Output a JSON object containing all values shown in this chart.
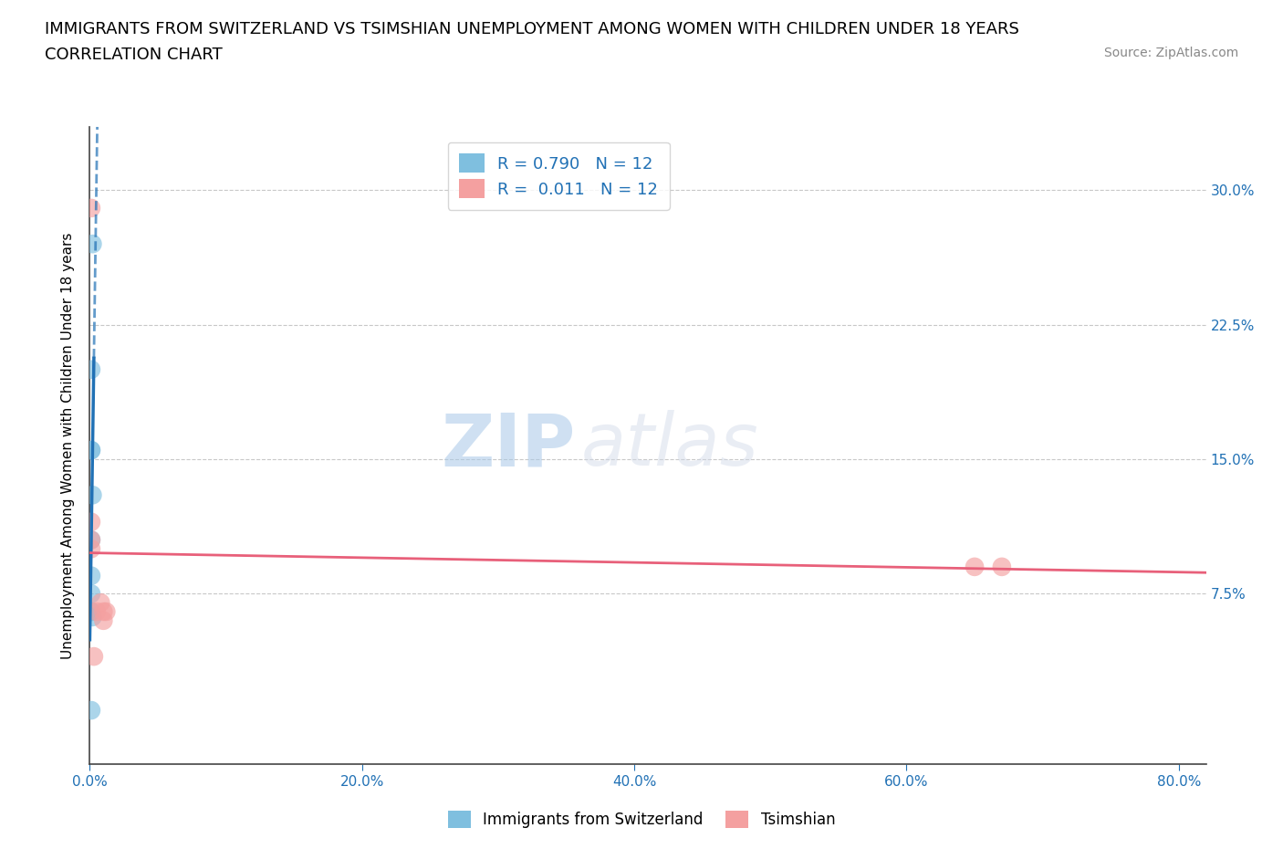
{
  "title_line1": "IMMIGRANTS FROM SWITZERLAND VS TSIMSHIAN UNEMPLOYMENT AMONG WOMEN WITH CHILDREN UNDER 18 YEARS",
  "title_line2": "CORRELATION CHART",
  "source": "Source: ZipAtlas.com",
  "ylabel": "Unemployment Among Women with Children Under 18 years",
  "xtick_vals": [
    0.0,
    0.2,
    0.4,
    0.6,
    0.8
  ],
  "xtick_labels": [
    "0.0%",
    "20.0%",
    "40.0%",
    "60.0%",
    "80.0%"
  ],
  "ytick_vals": [
    0.075,
    0.15,
    0.225,
    0.3
  ],
  "ytick_labels": [
    "7.5%",
    "15.0%",
    "22.5%",
    "30.0%"
  ],
  "xlim": [
    0.0,
    0.82
  ],
  "ylim": [
    -0.02,
    0.335
  ],
  "blue_x": [
    0.002,
    0.001,
    0.001,
    0.001,
    0.002,
    0.001,
    0.001,
    0.001,
    0.001,
    0.001,
    0.002,
    0.001
  ],
  "blue_y": [
    0.27,
    0.2,
    0.155,
    0.155,
    0.13,
    0.105,
    0.085,
    0.075,
    0.065,
    0.065,
    0.062,
    0.01
  ],
  "pink_x": [
    0.001,
    0.005,
    0.008,
    0.01,
    0.012,
    0.01,
    0.001,
    0.001,
    0.001,
    0.65,
    0.67,
    0.003
  ],
  "pink_y": [
    0.29,
    0.065,
    0.07,
    0.065,
    0.065,
    0.06,
    0.105,
    0.115,
    0.1,
    0.09,
    0.09,
    0.04
  ],
  "blue_color": "#7fbfdf",
  "pink_color": "#f4a0a0",
  "blue_line_color": "#2171b5",
  "pink_line_color": "#e8607a",
  "R_blue": "0.790",
  "N_blue": "12",
  "R_pink": "0.011",
  "N_pink": "12",
  "legend_label_blue": "Immigrants from Switzerland",
  "legend_label_pink": "Tsimshian",
  "watermark_zip": "ZIP",
  "watermark_atlas": "atlas",
  "background_color": "#ffffff",
  "grid_color": "#c8c8c8",
  "title_fontsize": 13,
  "axis_label_fontsize": 11,
  "tick_fontsize": 11,
  "legend_fontsize": 13,
  "source_fontsize": 10
}
